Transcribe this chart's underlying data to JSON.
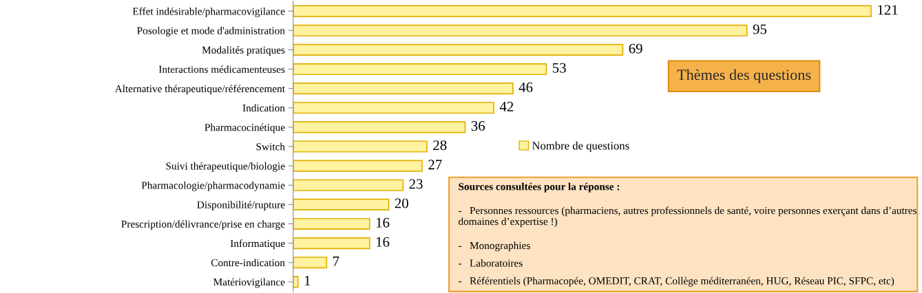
{
  "chart_data": {
    "type": "bar",
    "orientation": "horizontal",
    "title": "Thèmes des questions",
    "categories": [
      "Effet indésirable/pharmacovigilance",
      "Posologie et mode d'administration",
      "Modalités pratiques",
      "Interactions médicamenteuses",
      "Alternative thérapeutique/référencement",
      "Indication",
      "Pharmacocinétique",
      "Switch",
      "Suivi thérapeutique/biologie",
      "Pharmacologie/pharmacodynamie",
      "Disponibilité/rupture",
      "Prescription/délivrance/prise en charge",
      "Informatique",
      "Contre-indication",
      "Matériovigilance"
    ],
    "series": [
      {
        "name": "Nombre de questions",
        "color": "#fff2a0",
        "values": [
          121,
          95,
          69,
          53,
          46,
          42,
          36,
          28,
          27,
          23,
          20,
          16,
          16,
          7,
          1
        ]
      }
    ],
    "data_labels": true,
    "legend": "right",
    "grid": false,
    "annotations": [
      "Sources consultées pour la réponse :",
      "-   Personnes ressources (pharmaciens, autres professionnels de santé, voire personnes exerçant dans d’autres domaines d’expertise !)",
      "-   Monographies",
      "-   Laboratoires",
      "-   Référentiels (Pharmacopée, OMEDIT, CRAT, Collège méditerranéen, HUG, Réseau PIC, SFPC, etc)"
    ]
  }
}
